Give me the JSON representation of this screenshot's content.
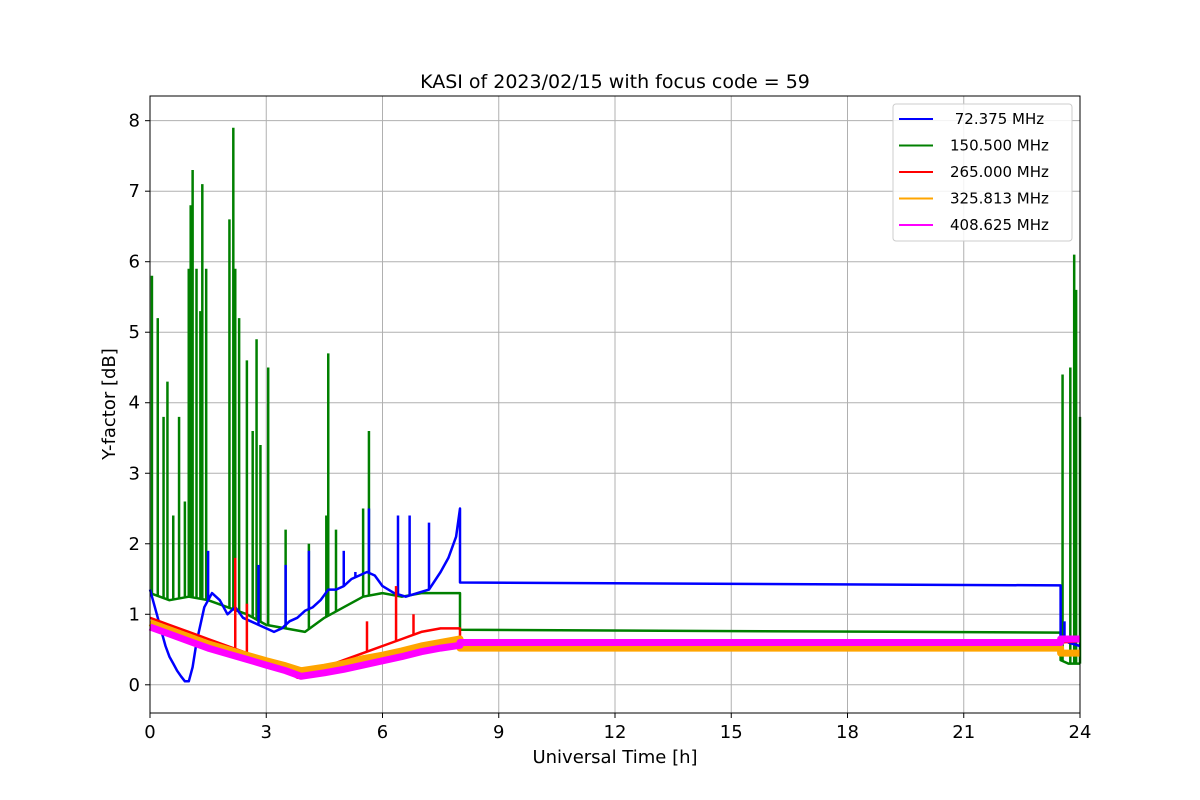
{
  "chart_data": {
    "type": "line",
    "title": "KASI of 2023/02/15 with focus code = 59",
    "xlabel": "Universal Time [h]",
    "ylabel": "Y-factor [dB]",
    "xlim": [
      0,
      24
    ],
    "ylim": [
      -0.4,
      8.35
    ],
    "xticks": [
      0,
      3,
      6,
      9,
      12,
      15,
      18,
      21,
      24
    ],
    "yticks": [
      0,
      1,
      2,
      3,
      4,
      5,
      6,
      7,
      8
    ],
    "grid": true,
    "legend_position": "top-right",
    "series": [
      {
        "name": " 72.375 MHz",
        "color": "#0000ff",
        "x": [
          0.0,
          0.1,
          0.2,
          0.3,
          0.4,
          0.5,
          0.6,
          0.7,
          0.8,
          0.9,
          1.0,
          1.1,
          1.2,
          1.4,
          1.6,
          1.8,
          2.0,
          2.2,
          2.4,
          2.6,
          2.8,
          3.0,
          3.2,
          3.4,
          3.6,
          3.8,
          4.0,
          4.2,
          4.4,
          4.6,
          4.8,
          5.0,
          5.2,
          5.4,
          5.6,
          5.8,
          6.0,
          6.3,
          6.6,
          6.9,
          7.2,
          7.5,
          7.7,
          7.9,
          8.0,
          8.0,
          23.5,
          23.5,
          23.7,
          24.0
        ],
        "y": [
          1.35,
          1.15,
          0.95,
          0.75,
          0.55,
          0.4,
          0.3,
          0.2,
          0.12,
          0.05,
          0.05,
          0.25,
          0.6,
          1.1,
          1.3,
          1.2,
          1.0,
          1.1,
          0.95,
          0.9,
          0.85,
          0.8,
          0.75,
          0.8,
          0.9,
          0.95,
          1.05,
          1.1,
          1.2,
          1.35,
          1.35,
          1.4,
          1.5,
          1.55,
          1.6,
          1.55,
          1.4,
          1.3,
          1.25,
          1.3,
          1.35,
          1.6,
          1.8,
          2.1,
          2.5,
          1.45,
          1.41,
          0.7,
          0.6,
          0.55
        ],
        "spikes": [
          [
            1.5,
            1.9
          ],
          [
            2.8,
            1.7
          ],
          [
            3.5,
            1.7
          ],
          [
            4.1,
            1.9
          ],
          [
            5.0,
            1.9
          ],
          [
            5.3,
            1.6
          ],
          [
            5.65,
            2.5
          ],
          [
            6.4,
            2.4
          ],
          [
            6.7,
            2.4
          ],
          [
            7.2,
            2.3
          ],
          [
            23.6,
            0.9
          ]
        ]
      },
      {
        "name": "150.500 MHz",
        "color": "#008000",
        "x": [
          0.0,
          0.5,
          1.0,
          1.5,
          2.0,
          2.5,
          3.0,
          3.5,
          4.0,
          4.5,
          5.0,
          5.5,
          6.0,
          6.5,
          7.0,
          7.5,
          8.0,
          8.0,
          23.5,
          23.5,
          23.7,
          24.0
        ],
        "y": [
          1.3,
          1.2,
          1.25,
          1.2,
          1.1,
          1.0,
          0.85,
          0.8,
          0.75,
          0.95,
          1.1,
          1.25,
          1.3,
          1.25,
          1.3,
          1.3,
          1.3,
          0.78,
          0.74,
          0.35,
          0.3,
          0.3
        ],
        "spikes": [
          [
            0.05,
            5.8
          ],
          [
            0.2,
            5.2
          ],
          [
            0.35,
            3.8
          ],
          [
            0.45,
            4.3
          ],
          [
            0.6,
            2.4
          ],
          [
            0.75,
            3.8
          ],
          [
            0.9,
            2.6
          ],
          [
            1.0,
            5.9
          ],
          [
            1.05,
            6.8
          ],
          [
            1.1,
            7.3
          ],
          [
            1.2,
            5.9
          ],
          [
            1.3,
            5.3
          ],
          [
            1.35,
            7.1
          ],
          [
            1.45,
            5.9
          ],
          [
            2.05,
            6.6
          ],
          [
            2.15,
            7.9
          ],
          [
            2.2,
            5.9
          ],
          [
            2.3,
            5.2
          ],
          [
            2.5,
            4.6
          ],
          [
            2.65,
            3.6
          ],
          [
            2.75,
            4.9
          ],
          [
            2.85,
            3.4
          ],
          [
            3.05,
            4.5
          ],
          [
            3.5,
            2.2
          ],
          [
            4.1,
            2.0
          ],
          [
            4.55,
            2.4
          ],
          [
            4.6,
            4.7
          ],
          [
            4.8,
            2.2
          ],
          [
            5.5,
            2.5
          ],
          [
            5.65,
            3.6
          ],
          [
            23.55,
            4.4
          ],
          [
            23.75,
            4.5
          ],
          [
            23.85,
            6.1
          ],
          [
            23.9,
            5.6
          ],
          [
            24.0,
            3.8
          ]
        ]
      },
      {
        "name": "265.000 MHz",
        "color": "#ff0000",
        "x": [
          0.0,
          0.5,
          1.0,
          1.5,
          2.0,
          2.5,
          3.0,
          3.5,
          3.8,
          4.0,
          4.5,
          5.0,
          5.5,
          6.0,
          6.5,
          7.0,
          7.5,
          8.0,
          8.0,
          23.5,
          23.5,
          24.0
        ],
        "y": [
          0.95,
          0.85,
          0.75,
          0.65,
          0.55,
          0.45,
          0.3,
          0.2,
          0.1,
          0.15,
          0.25,
          0.35,
          0.45,
          0.55,
          0.65,
          0.75,
          0.8,
          0.8,
          0.6,
          0.6,
          0.6,
          0.62
        ],
        "spikes": [
          [
            2.2,
            1.8
          ],
          [
            2.5,
            1.15
          ],
          [
            5.6,
            0.9
          ],
          [
            6.35,
            1.4
          ],
          [
            6.8,
            1.0
          ]
        ]
      },
      {
        "name": "325.813 MHz",
        "color": "#ffa500",
        "x": [
          0.0,
          0.5,
          1.0,
          1.5,
          2.0,
          2.5,
          3.0,
          3.5,
          3.9,
          4.5,
          5.0,
          5.5,
          6.0,
          6.5,
          7.0,
          7.5,
          8.0,
          8.0,
          23.5,
          23.5,
          24.0
        ],
        "y": [
          0.88,
          0.78,
          0.68,
          0.58,
          0.5,
          0.42,
          0.34,
          0.27,
          0.2,
          0.25,
          0.3,
          0.37,
          0.42,
          0.48,
          0.55,
          0.6,
          0.65,
          0.52,
          0.52,
          0.45,
          0.45
        ],
        "spikes": []
      },
      {
        "name": "408.625 MHz",
        "color": "#ff00ff",
        "x": [
          0.0,
          0.5,
          1.0,
          1.5,
          2.0,
          2.5,
          3.0,
          3.5,
          3.9,
          4.5,
          5.0,
          5.5,
          6.0,
          6.5,
          7.0,
          7.5,
          8.0,
          8.0,
          23.5,
          23.5,
          24.0
        ],
        "y": [
          0.82,
          0.72,
          0.62,
          0.52,
          0.44,
          0.36,
          0.28,
          0.2,
          0.12,
          0.17,
          0.22,
          0.28,
          0.34,
          0.4,
          0.47,
          0.52,
          0.56,
          0.6,
          0.6,
          0.65,
          0.65
        ],
        "spikes": []
      }
    ]
  }
}
